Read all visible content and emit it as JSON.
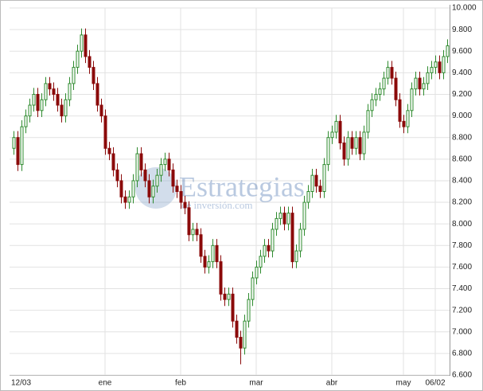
{
  "chart_data": {
    "type": "candlestick",
    "watermark": {
      "title": "Estrategias",
      "subtitle": "de inversión.com"
    },
    "categories": [
      "12/03",
      null,
      null,
      null,
      null,
      null,
      null,
      null,
      null,
      null,
      null,
      null,
      null,
      null,
      null,
      null,
      null,
      null,
      null,
      null,
      null,
      null,
      null,
      "ene",
      null,
      null,
      null,
      null,
      null,
      null,
      null,
      null,
      null,
      null,
      null,
      null,
      null,
      null,
      null,
      null,
      null,
      null,
      "feb",
      null,
      null,
      null,
      null,
      null,
      null,
      null,
      null,
      null,
      null,
      null,
      null,
      null,
      null,
      null,
      null,
      null,
      null,
      "mar",
      null,
      null,
      null,
      null,
      null,
      null,
      null,
      null,
      null,
      null,
      null,
      null,
      null,
      null,
      null,
      null,
      null,
      null,
      "abr",
      null,
      null,
      null,
      null,
      null,
      null,
      null,
      null,
      null,
      null,
      null,
      null,
      null,
      null,
      null,
      null,
      null,
      "may",
      null,
      null,
      null,
      null,
      null,
      null,
      null,
      "06/02",
      null,
      null,
      null
    ],
    "open": [
      8700,
      8800,
      8550,
      8900,
      9000,
      9100,
      9200,
      9050,
      9150,
      9300,
      9250,
      9200,
      9100,
      9000,
      9150,
      9300,
      9450,
      9600,
      9750,
      9550,
      9450,
      9300,
      9100,
      9000,
      8700,
      8650,
      8500,
      8400,
      8250,
      8200,
      8250,
      8400,
      8650,
      8500,
      8400,
      8250,
      8350,
      8450,
      8550,
      8600,
      8500,
      8350,
      8300,
      8200,
      8150,
      7900,
      7950,
      7900,
      7700,
      7600,
      7650,
      7800,
      7650,
      7350,
      7300,
      7350,
      7100,
      6950,
      6850,
      7100,
      7300,
      7500,
      7600,
      7700,
      7800,
      7750,
      7950,
      8050,
      8100,
      8000,
      8100,
      7650,
      7750,
      7950,
      8200,
      8300,
      8450,
      8350,
      8300,
      8550,
      8800,
      8850,
      8950,
      8750,
      8600,
      8800,
      8700,
      8800,
      8650,
      8850,
      9050,
      9150,
      9200,
      9250,
      9350,
      9450,
      9350,
      9150,
      8950,
      8900,
      9050,
      9250,
      9350,
      9250,
      9300,
      9400,
      9450,
      9500,
      9400,
      9550
    ],
    "high": [
      8860,
      8860,
      8960,
      9060,
      9160,
      9260,
      9260,
      9210,
      9360,
      9360,
      9310,
      9260,
      9160,
      9210,
      9360,
      9510,
      9660,
      9810,
      9810,
      9610,
      9510,
      9360,
      9160,
      9060,
      8760,
      8710,
      8560,
      8460,
      8310,
      8310,
      8460,
      8710,
      8710,
      8560,
      8460,
      8410,
      8510,
      8610,
      8660,
      8660,
      8560,
      8410,
      8360,
      8260,
      8210,
      8010,
      8010,
      7960,
      7760,
      7710,
      7860,
      7860,
      7710,
      7410,
      7410,
      7410,
      7160,
      7010,
      7160,
      7360,
      7560,
      7660,
      7760,
      7860,
      7860,
      8010,
      8110,
      8160,
      8160,
      8160,
      8160,
      7810,
      8010,
      8260,
      8360,
      8510,
      8510,
      8410,
      8610,
      8860,
      8910,
      9010,
      9010,
      8810,
      8860,
      8860,
      8860,
      8860,
      8910,
      9110,
      9210,
      9260,
      9310,
      9410,
      9510,
      9510,
      9410,
      9210,
      9010,
      9110,
      9310,
      9410,
      9410,
      9360,
      9460,
      9510,
      9560,
      9560,
      9610,
      9710
    ],
    "low": [
      8640,
      8490,
      8490,
      8840,
      8940,
      9040,
      8990,
      8990,
      9090,
      9190,
      9140,
      9040,
      8940,
      8940,
      9090,
      9240,
      9390,
      9540,
      9490,
      9390,
      9240,
      9040,
      8940,
      8640,
      8590,
      8440,
      8340,
      8190,
      8140,
      8140,
      8190,
      8340,
      8440,
      8340,
      8190,
      8190,
      8290,
      8390,
      8490,
      8440,
      8290,
      8240,
      8140,
      8090,
      7840,
      7840,
      7840,
      7640,
      7540,
      7540,
      7590,
      7590,
      7290,
      7240,
      7240,
      7040,
      6890,
      6700,
      6790,
      7040,
      7240,
      7440,
      7540,
      7640,
      7690,
      7690,
      7890,
      7990,
      7940,
      7940,
      7590,
      7590,
      7690,
      7890,
      8140,
      8240,
      8290,
      8240,
      8240,
      8490,
      8740,
      8790,
      8690,
      8540,
      8540,
      8640,
      8640,
      8590,
      8590,
      8790,
      8990,
      9090,
      9140,
      9190,
      9290,
      9290,
      9090,
      8890,
      8840,
      8840,
      8990,
      9190,
      9190,
      9190,
      9240,
      9340,
      9390,
      9340,
      9340,
      9490
    ],
    "close": [
      8800,
      8550,
      8900,
      9000,
      9100,
      9200,
      9050,
      9150,
      9300,
      9250,
      9200,
      9100,
      9000,
      9150,
      9300,
      9450,
      9600,
      9750,
      9550,
      9450,
      9300,
      9100,
      9000,
      8700,
      8650,
      8500,
      8400,
      8250,
      8200,
      8250,
      8400,
      8650,
      8500,
      8400,
      8250,
      8350,
      8450,
      8550,
      8600,
      8500,
      8350,
      8300,
      8200,
      8150,
      7900,
      7950,
      7900,
      7700,
      7600,
      7650,
      7800,
      7650,
      7350,
      7300,
      7350,
      7100,
      6950,
      6850,
      7100,
      7300,
      7500,
      7600,
      7700,
      7800,
      7750,
      7950,
      8050,
      8100,
      8000,
      8100,
      7650,
      7750,
      7950,
      8200,
      8300,
      8450,
      8350,
      8300,
      8550,
      8800,
      8850,
      8950,
      8750,
      8600,
      8800,
      8700,
      8800,
      8650,
      8850,
      9050,
      9150,
      9200,
      9250,
      9350,
      9450,
      9350,
      9150,
      8950,
      8900,
      9050,
      9250,
      9350,
      9250,
      9300,
      9400,
      9450,
      9500,
      9400,
      9550,
      9650
    ],
    "up_color": "#2e8b2e",
    "down_color": "#8b0a0a",
    "ylim": [
      6600,
      10000
    ],
    "yticks": [
      {
        "value": 6600,
        "label": "6.600"
      },
      {
        "value": 6800,
        "label": "6.800"
      },
      {
        "value": 7000,
        "label": "7.000"
      },
      {
        "value": 7200,
        "label": "7.200"
      },
      {
        "value": 7400,
        "label": "7.400"
      },
      {
        "value": 7600,
        "label": "7.600"
      },
      {
        "value": 7800,
        "label": "7.800"
      },
      {
        "value": 8000,
        "label": "8.000"
      },
      {
        "value": 8200,
        "label": "8.200"
      },
      {
        "value": 8400,
        "label": "8.400"
      },
      {
        "value": 8600,
        "label": "8.600"
      },
      {
        "value": 8800,
        "label": "8.800"
      },
      {
        "value": 9000,
        "label": "9.000"
      },
      {
        "value": 9200,
        "label": "9.200"
      },
      {
        "value": 9400,
        "label": "9.400"
      },
      {
        "value": 9600,
        "label": "9.600"
      },
      {
        "value": 9800,
        "label": "9.800"
      },
      {
        "value": 10000,
        "label": "10.000"
      }
    ],
    "grid": true
  }
}
